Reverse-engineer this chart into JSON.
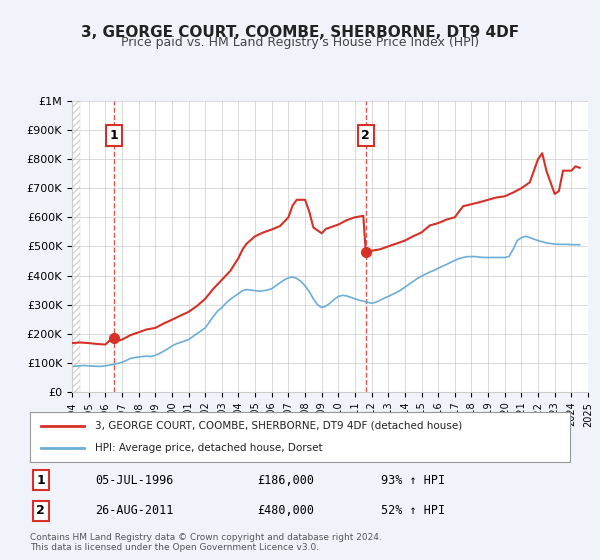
{
  "title": "3, GEORGE COURT, COOMBE, SHERBORNE, DT9 4DF",
  "subtitle": "Price paid vs. HM Land Registry's House Price Index (HPI)",
  "legend_line1": "3, GEORGE COURT, COOMBE, SHERBORNE, DT9 4DF (detached house)",
  "legend_line2": "HPI: Average price, detached house, Dorset",
  "sale1_date": "1996-07-05",
  "sale1_label": "05-JUL-1996",
  "sale1_price": 186000,
  "sale1_pct": "93% ↑ HPI",
  "sale2_date": "2011-08-26",
  "sale2_label": "26-AUG-2011",
  "sale2_price": 480000,
  "sale2_pct": "52% ↑ HPI",
  "footnote1": "Contains HM Land Registry data © Crown copyright and database right 2024.",
  "footnote2": "This data is licensed under the Open Government Licence v3.0.",
  "hpi_color": "#6baed6",
  "price_color": "#d73027",
  "sale_marker_color": "#d73027",
  "background_color": "#f0f4fa",
  "plot_bg_color": "#ffffff",
  "grid_color": "#cccccc",
  "ylim": [
    0,
    1000000
  ],
  "yticks": [
    0,
    100000,
    200000,
    300000,
    400000,
    500000,
    600000,
    700000,
    800000,
    900000,
    1000000
  ],
  "ytick_labels": [
    "£0",
    "£100K",
    "£200K",
    "£300K",
    "£400K",
    "£500K",
    "£600K",
    "£700K",
    "£800K",
    "£900K",
    "£1M"
  ],
  "hpi_data": {
    "years": [
      1994.0,
      1994.25,
      1994.5,
      1994.75,
      1995.0,
      1995.25,
      1995.5,
      1995.75,
      1996.0,
      1996.25,
      1996.5,
      1996.75,
      1997.0,
      1997.25,
      1997.5,
      1997.75,
      1998.0,
      1998.25,
      1998.5,
      1998.75,
      1999.0,
      1999.25,
      1999.5,
      1999.75,
      2000.0,
      2000.25,
      2000.5,
      2000.75,
      2001.0,
      2001.25,
      2001.5,
      2001.75,
      2002.0,
      2002.25,
      2002.5,
      2002.75,
      2003.0,
      2003.25,
      2003.5,
      2003.75,
      2004.0,
      2004.25,
      2004.5,
      2004.75,
      2005.0,
      2005.25,
      2005.5,
      2005.75,
      2006.0,
      2006.25,
      2006.5,
      2006.75,
      2007.0,
      2007.25,
      2007.5,
      2007.75,
      2008.0,
      2008.25,
      2008.5,
      2008.75,
      2009.0,
      2009.25,
      2009.5,
      2009.75,
      2010.0,
      2010.25,
      2010.5,
      2010.75,
      2011.0,
      2011.25,
      2011.5,
      2011.75,
      2012.0,
      2012.25,
      2012.5,
      2012.75,
      2013.0,
      2013.25,
      2013.5,
      2013.75,
      2014.0,
      2014.25,
      2014.5,
      2014.75,
      2015.0,
      2015.25,
      2015.5,
      2015.75,
      2016.0,
      2016.25,
      2016.5,
      2016.75,
      2017.0,
      2017.25,
      2017.5,
      2017.75,
      2018.0,
      2018.25,
      2018.5,
      2018.75,
      2019.0,
      2019.25,
      2019.5,
      2019.75,
      2020.0,
      2020.25,
      2020.5,
      2020.75,
      2021.0,
      2021.25,
      2021.5,
      2021.75,
      2022.0,
      2022.25,
      2022.5,
      2022.75,
      2023.0,
      2023.25,
      2023.5,
      2023.75,
      2024.0,
      2024.25,
      2024.5
    ],
    "values": [
      88000,
      89000,
      90000,
      91000,
      90000,
      89000,
      88000,
      88000,
      90000,
      92000,
      95000,
      98000,
      102000,
      108000,
      115000,
      118000,
      120000,
      122000,
      123000,
      122000,
      126000,
      132000,
      140000,
      148000,
      158000,
      165000,
      170000,
      175000,
      180000,
      190000,
      200000,
      210000,
      220000,
      240000,
      260000,
      278000,
      290000,
      305000,
      318000,
      328000,
      338000,
      348000,
      352000,
      350000,
      348000,
      346000,
      348000,
      350000,
      355000,
      365000,
      375000,
      385000,
      392000,
      395000,
      390000,
      380000,
      365000,
      345000,
      320000,
      300000,
      290000,
      295000,
      305000,
      318000,
      328000,
      332000,
      330000,
      325000,
      320000,
      315000,
      312000,
      308000,
      305000,
      308000,
      315000,
      322000,
      328000,
      335000,
      342000,
      350000,
      360000,
      370000,
      380000,
      390000,
      398000,
      405000,
      412000,
      418000,
      425000,
      432000,
      438000,
      445000,
      452000,
      458000,
      462000,
      465000,
      465000,
      465000,
      463000,
      462000,
      462000,
      462000,
      462000,
      462000,
      462000,
      465000,
      490000,
      520000,
      530000,
      535000,
      530000,
      525000,
      520000,
      516000,
      512000,
      510000,
      508000,
      507000,
      507000,
      507000,
      506000,
      506000,
      506000
    ]
  },
  "price_data": {
    "years": [
      1994.0,
      1994.5,
      1995.0,
      1995.5,
      1996.0,
      1996.45,
      1996.7,
      1997.0,
      1997.5,
      1998.0,
      1998.5,
      1999.0,
      1999.5,
      2000.0,
      2000.5,
      2001.0,
      2001.5,
      2002.0,
      2002.5,
      2003.0,
      2003.5,
      2004.0,
      2004.25,
      2004.5,
      2005.0,
      2005.5,
      2006.0,
      2006.5,
      2007.0,
      2007.25,
      2007.5,
      2008.0,
      2008.25,
      2008.5,
      2009.0,
      2009.25,
      2010.0,
      2010.5,
      2011.0,
      2011.5,
      2011.65,
      2012.0,
      2012.5,
      2013.0,
      2013.5,
      2014.0,
      2014.5,
      2015.0,
      2015.25,
      2015.5,
      2016.0,
      2016.5,
      2017.0,
      2017.25,
      2017.5,
      2018.0,
      2018.5,
      2019.0,
      2019.5,
      2020.0,
      2020.5,
      2021.0,
      2021.5,
      2022.0,
      2022.25,
      2022.5,
      2023.0,
      2023.25,
      2023.5,
      2024.0,
      2024.25,
      2024.5
    ],
    "values": [
      168000,
      170000,
      168000,
      165000,
      163000,
      186000,
      175000,
      180000,
      195000,
      205000,
      215000,
      220000,
      235000,
      248000,
      262000,
      275000,
      295000,
      320000,
      355000,
      385000,
      415000,
      460000,
      490000,
      510000,
      535000,
      548000,
      558000,
      570000,
      600000,
      640000,
      660000,
      660000,
      620000,
      565000,
      545000,
      560000,
      575000,
      590000,
      600000,
      605000,
      480000,
      485000,
      490000,
      500000,
      510000,
      520000,
      535000,
      548000,
      560000,
      572000,
      580000,
      592000,
      600000,
      620000,
      638000,
      645000,
      652000,
      660000,
      668000,
      672000,
      685000,
      700000,
      720000,
      800000,
      820000,
      760000,
      680000,
      690000,
      760000,
      760000,
      775000,
      770000
    ]
  }
}
